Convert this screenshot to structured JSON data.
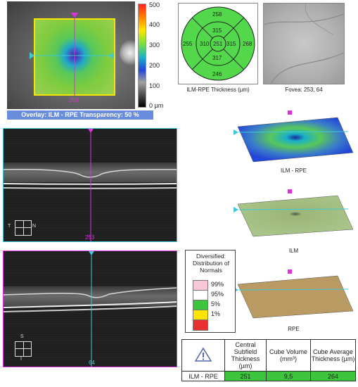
{
  "overlay_panel": {
    "cursor_label": "253",
    "colorbar_ticks": [
      "500",
      "400",
      "300",
      "200",
      "100",
      "0 µm"
    ],
    "caption": "Overlay: ILM - RPE  Transparency: 50 %"
  },
  "etdrs": {
    "outer_top": "258",
    "inner_top": "315",
    "outer_left": "255",
    "inner_left": "310",
    "center": "251",
    "inner_right": "315",
    "outer_right": "268",
    "inner_bottom": "317",
    "outer_bottom": "246",
    "caption": "ILM-RPE Thickness (µm)"
  },
  "fovea_panel": {
    "caption": "Fovea: 253, 64"
  },
  "horizontal_bscan": {
    "scan_label": "253",
    "orient_left": "T",
    "orient_right": "N"
  },
  "vertical_bscan": {
    "scan_label": "64",
    "orient_top": "S",
    "orient_bottom": "I"
  },
  "surfaces": [
    {
      "label": "ILM - RPE"
    },
    {
      "label": "ILM"
    },
    {
      "label": "RPE"
    }
  ],
  "legend": {
    "title": "Diversified: Distribution of Normals",
    "entries": [
      {
        "label": "99%",
        "color": "#f8c8d6"
      },
      {
        "label": "95%",
        "color": "#ffffff"
      },
      {
        "label": "5%",
        "color": "#3ec53e"
      },
      {
        "label": "1%",
        "color": "#ffe400"
      },
      {
        "label": "",
        "color": "#e83030"
      }
    ]
  },
  "summary_table": {
    "headers": [
      "Central Subfield Thickness (µm)",
      "Cube Volume (mm³)",
      "Cube Average Thickness (µm)"
    ],
    "row_label": "ILM - RPE",
    "values": [
      "251",
      "9,5",
      "264"
    ],
    "value_color": "#3ec53e",
    "icon": "warning-triangle-icon"
  }
}
